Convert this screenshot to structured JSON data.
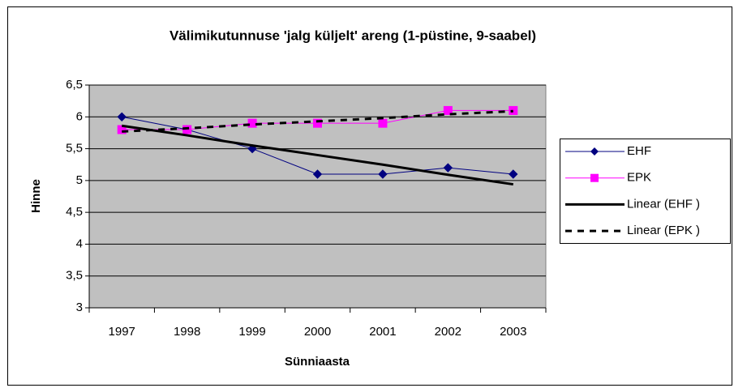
{
  "chart_data": {
    "type": "line",
    "title": "Välimikutunnuse 'jalg küljelt' areng (1-püstine, 9-saabel)",
    "x_label": "Sünniaasta",
    "y_label": "Hinne",
    "categories": [
      "1997",
      "1998",
      "1999",
      "2000",
      "2001",
      "2002",
      "2003"
    ],
    "series": [
      {
        "name": "EHF",
        "color": "#000080",
        "marker": "diamond",
        "dash": false,
        "width": 1,
        "values": [
          6.0,
          5.8,
          5.5,
          5.1,
          5.1,
          5.2,
          5.1
        ]
      },
      {
        "name": "EPK",
        "color": "#ff00ff",
        "marker": "square",
        "dash": false,
        "width": 1,
        "values": [
          5.8,
          5.8,
          5.9,
          5.9,
          5.9,
          6.1,
          6.1
        ]
      },
      {
        "name": "Linear (EHF )",
        "color": "#000000",
        "marker": "none",
        "dash": false,
        "width": 3,
        "values": [
          5.86,
          5.71,
          5.55,
          5.4,
          5.25,
          5.09,
          4.94
        ]
      },
      {
        "name": "Linear (EPK )",
        "color": "#000000",
        "marker": "none",
        "dash": true,
        "width": 3,
        "values": [
          5.77,
          5.82,
          5.88,
          5.93,
          5.98,
          6.04,
          6.09
        ]
      }
    ],
    "ylim": [
      3,
      6.5
    ],
    "yticks": [
      3,
      {
        "value": 3.5,
        "label": "3,5"
      },
      4,
      {
        "value": 4.5,
        "label": "4,5"
      },
      5,
      {
        "value": 5.5,
        "label": "5,5"
      },
      6,
      {
        "value": 6.5,
        "label": "6,5"
      }
    ],
    "grid": true,
    "legend": "right",
    "plot_background": "#c0c0c0"
  }
}
